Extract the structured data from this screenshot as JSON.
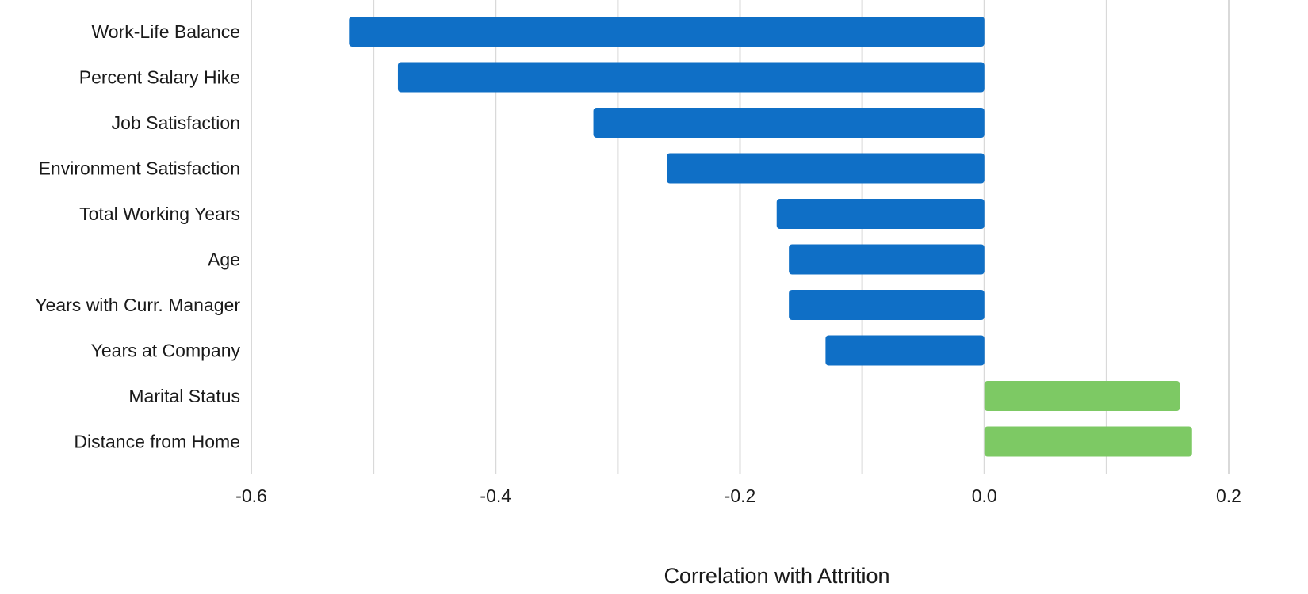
{
  "chart_data": {
    "type": "bar",
    "orientation": "horizontal",
    "categories": [
      "Work-Life Balance",
      "Percent Salary Hike",
      "Job Satisfaction",
      "Environment Satisfaction",
      "Total Working Years",
      "Age",
      "Years with Curr. Manager",
      "Years at Company",
      "Marital Status",
      "Distance from Home"
    ],
    "values": [
      -0.52,
      -0.48,
      -0.32,
      -0.26,
      -0.17,
      -0.16,
      -0.16,
      -0.13,
      0.16,
      0.17
    ],
    "title": "",
    "xlabel": "Correlation with Attrition",
    "ylabel": "",
    "xlim": [
      -0.6,
      0.2
    ],
    "xticks": [
      -0.6,
      -0.4,
      -0.2,
      0.0,
      0.2
    ],
    "xtick_labels": [
      "-0.6",
      "-0.4",
      "-0.2",
      "0.0",
      "0.2"
    ],
    "minor_gridlines": [
      -0.5,
      -0.3,
      -0.1,
      0.1
    ],
    "grid": true,
    "legend": "none",
    "colors": {
      "negative": "#0f6fc6",
      "positive": "#7dc964",
      "gridline": "#d9d9d9",
      "text": "#1a1a1a"
    }
  }
}
